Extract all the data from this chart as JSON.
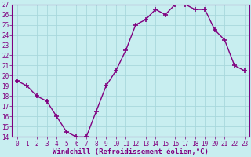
{
  "x": [
    0,
    1,
    2,
    3,
    4,
    5,
    6,
    7,
    8,
    9,
    10,
    11,
    12,
    13,
    14,
    15,
    16,
    17,
    18,
    19,
    20,
    21,
    22,
    23
  ],
  "y": [
    19.5,
    19.0,
    18.0,
    17.5,
    16.0,
    14.5,
    14.0,
    14.0,
    16.5,
    19.0,
    20.5,
    22.5,
    25.0,
    25.5,
    26.5,
    26.0,
    27.0,
    27.0,
    26.5,
    26.5,
    24.5,
    23.5,
    21.0,
    20.5
  ],
  "line_color": "#800080",
  "marker": "+",
  "marker_size": 4,
  "marker_lw": 1.2,
  "bg_color": "#c8eef0",
  "grid_color": "#a8d8dc",
  "xlabel": "Windchill (Refroidissement éolien,°C)",
  "ylabel": "",
  "ylim": [
    14,
    27
  ],
  "xlim": [
    -0.5,
    23.5
  ],
  "yticks": [
    14,
    15,
    16,
    17,
    18,
    19,
    20,
    21,
    22,
    23,
    24,
    25,
    26,
    27
  ],
  "xticks": [
    0,
    1,
    2,
    3,
    4,
    5,
    6,
    7,
    8,
    9,
    10,
    11,
    12,
    13,
    14,
    15,
    16,
    17,
    18,
    19,
    20,
    21,
    22,
    23
  ],
  "axis_color": "#800080",
  "tick_label_color": "#800080",
  "xlabel_color": "#800080",
  "xlabel_fontsize": 6.5,
  "tick_fontsize": 5.5,
  "line_width": 1.0
}
